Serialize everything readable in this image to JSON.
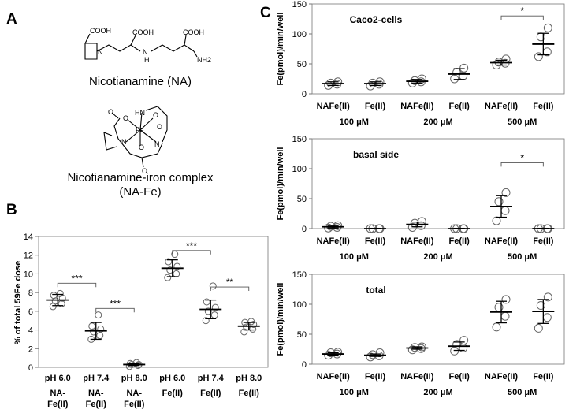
{
  "panels": {
    "A": {
      "letter": "A",
      "molecule1": {
        "caption": "Nicotianamine (NA)",
        "atoms": {
          "cooh1": "COOH",
          "cooh2": "COOH",
          "cooh3": "COOH",
          "n_ring": "N",
          "n_h": "N",
          "h": "H",
          "nh2": "NH2"
        }
      },
      "molecule2": {
        "caption_line1": "Nicotianamine-iron complex",
        "caption_line2": "(NA-Fe)",
        "atoms": {
          "hn": "HN",
          "fe": "Fe",
          "o1": "O",
          "o2": "O",
          "o3": "O",
          "o4": "O",
          "o5": "O",
          "o6": "O",
          "n1": "N",
          "n2": "N"
        }
      }
    },
    "B": {
      "letter": "B",
      "ylabel": "% of total 59Fe dose",
      "y_ticks": [
        "0",
        "2",
        "4",
        "6",
        "8",
        "10",
        "12",
        "14"
      ],
      "ph_labels": [
        "pH 6.0",
        "pH 7.4",
        "pH 8.0",
        "pH 6.0",
        "pH 7.4",
        "pH 8.0"
      ],
      "group_labels": [
        [
          "NA-",
          "Fe(II)"
        ],
        [
          "NA-",
          "Fe(II)"
        ],
        [
          "NA-",
          "Fe(II)"
        ],
        [
          "Fe(II)"
        ],
        [
          "Fe(II)"
        ],
        [
          "Fe(II)"
        ]
      ],
      "significance": [
        "***",
        "***",
        "***",
        "**"
      ]
    },
    "C": {
      "letter": "C",
      "ylabel": "Fe(pmol)/min/well",
      "y_ticks": [
        "0",
        "50",
        "100",
        "150"
      ],
      "subplots": [
        {
          "title": "Caco2-cells",
          "significance": "*"
        },
        {
          "title": "basal side",
          "significance": "*"
        },
        {
          "title": "total",
          "significance": ""
        }
      ],
      "category_labels": [
        "NAFe(II)",
        "Fe(II)",
        "NAFe(II)",
        "Fe(II)",
        "NAFe(II)",
        "Fe(II)"
      ],
      "concentration_labels": [
        "100 μM",
        "200 μM",
        "500 μM"
      ]
    }
  },
  "chart_data": [
    {
      "type": "scatter",
      "panel": "B",
      "ylabel": "% of total 59Fe dose",
      "ylim": [
        0,
        14
      ],
      "categories": [
        "pH 6.0 NA-Fe(II)",
        "pH 7.4 NA-Fe(II)",
        "pH 8.0 NA-Fe(II)",
        "pH 6.0 Fe(II)",
        "pH 7.4 Fe(II)",
        "pH 8.0 Fe(II)"
      ],
      "means": [
        7.2,
        3.9,
        0.3,
        10.6,
        6.2,
        4.4
      ],
      "sd": [
        0.6,
        0.9,
        0.1,
        0.9,
        1.0,
        0.4
      ],
      "points": [
        [
          6.5,
          6.8,
          7.1,
          7.4,
          7.7,
          7.9
        ],
        [
          3.0,
          3.4,
          3.8,
          4.1,
          4.4,
          5.6
        ],
        [
          0.1,
          0.2,
          0.3,
          0.3,
          0.4,
          0.5
        ],
        [
          9.6,
          10.0,
          10.4,
          10.8,
          11.3,
          12.1
        ],
        [
          5.0,
          5.6,
          6.0,
          6.4,
          7.0,
          8.7
        ],
        [
          3.8,
          4.1,
          4.3,
          4.6,
          4.8,
          4.9
        ]
      ],
      "significance": [
        {
          "from": 0,
          "to": 1,
          "label": "***",
          "y": 9.0
        },
        {
          "from": 1,
          "to": 2,
          "label": "***",
          "y": 6.3
        },
        {
          "from": 3,
          "to": 4,
          "label": "***",
          "y": 12.5
        },
        {
          "from": 4,
          "to": 5,
          "label": "**",
          "y": 8.6
        }
      ]
    },
    {
      "type": "scatter",
      "panel": "C",
      "title": "Caco2-cells",
      "ylabel": "Fe(pmol)/min/well",
      "ylim": [
        0,
        150
      ],
      "categories": [
        "100 μM NAFe(II)",
        "100 μM Fe(II)",
        "200 μM NAFe(II)",
        "200 μM Fe(II)",
        "500 μM NAFe(II)",
        "500 μM Fe(II)"
      ],
      "means": [
        17,
        17,
        21,
        33,
        52,
        83
      ],
      "sd": [
        3,
        3,
        3,
        9,
        4,
        18
      ],
      "points": [
        [
          14,
          16,
          18,
          20
        ],
        [
          13,
          16,
          18,
          20
        ],
        [
          18,
          20,
          22,
          25
        ],
        [
          25,
          30,
          36,
          43
        ],
        [
          48,
          51,
          53,
          58
        ],
        [
          62,
          70,
          95,
          110
        ]
      ],
      "significance": [
        {
          "from": 4,
          "to": 5,
          "label": "*",
          "y": 130
        }
      ]
    },
    {
      "type": "scatter",
      "panel": "C",
      "title": "basal side",
      "ylabel": "Fe(pmol)/min/well",
      "ylim": [
        0,
        150
      ],
      "categories": [
        "100 μM NAFe(II)",
        "100 μM Fe(II)",
        "200 μM NAFe(II)",
        "200 μM Fe(II)",
        "500 μM NAFe(II)",
        "500 μM Fe(II)"
      ],
      "means": [
        3,
        0,
        7,
        0,
        37,
        0
      ],
      "sd": [
        2,
        0.5,
        4,
        0.5,
        18,
        0.5
      ],
      "points": [
        [
          1,
          2,
          4,
          5
        ],
        [
          0,
          0,
          0,
          0
        ],
        [
          2,
          5,
          9,
          12
        ],
        [
          0,
          0,
          0,
          0
        ],
        [
          13,
          30,
          45,
          60
        ],
        [
          0,
          0,
          0,
          0
        ]
      ],
      "significance": [
        {
          "from": 4,
          "to": 5,
          "label": "*",
          "y": 110
        }
      ]
    },
    {
      "type": "scatter",
      "panel": "C",
      "title": "total",
      "ylabel": "Fe(pmol)/min/well",
      "ylim": [
        0,
        150
      ],
      "categories": [
        "100 μM NAFe(II)",
        "100 μM Fe(II)",
        "200 μM NAFe(II)",
        "200 μM Fe(II)",
        "500 μM NAFe(II)",
        "500 μM Fe(II)"
      ],
      "means": [
        17,
        15,
        27,
        30,
        87,
        88
      ],
      "sd": [
        2,
        2,
        2,
        7,
        18,
        20
      ],
      "points": [
        [
          15,
          17,
          19,
          20
        ],
        [
          12,
          14,
          16,
          19
        ],
        [
          24,
          26,
          28,
          29
        ],
        [
          22,
          27,
          33,
          40
        ],
        [
          62,
          80,
          95,
          108
        ],
        [
          60,
          78,
          98,
          112
        ]
      ],
      "significance": []
    }
  ]
}
